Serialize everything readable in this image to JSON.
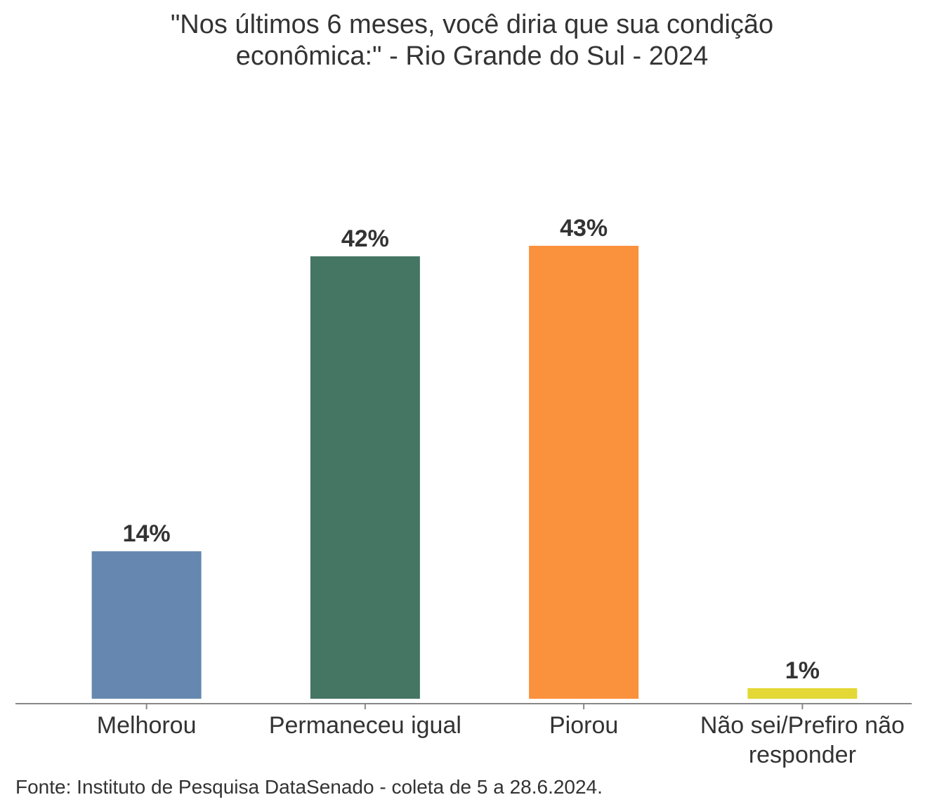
{
  "chart_data": {
    "type": "bar",
    "title": [
      "\"Nos últimos 6 meses, você diria que sua condição",
      "econômica:\" - Rio Grande do Sul - 2024"
    ],
    "categories": [
      "Melhorou",
      "Permaneceu igual",
      "Piorou",
      "Não sei/Prefiro não responder"
    ],
    "values": [
      14,
      42,
      43,
      1
    ],
    "value_labels": [
      "14%",
      "42%",
      "43%",
      "1%"
    ],
    "colors": [
      "#6688b0",
      "#457563",
      "#fa913c",
      "#e3d835"
    ],
    "ylim": [
      0,
      60
    ],
    "source": "Fonte: Instituto de Pesquisa DataSenado - coleta de 5 a 28.6.2024."
  }
}
